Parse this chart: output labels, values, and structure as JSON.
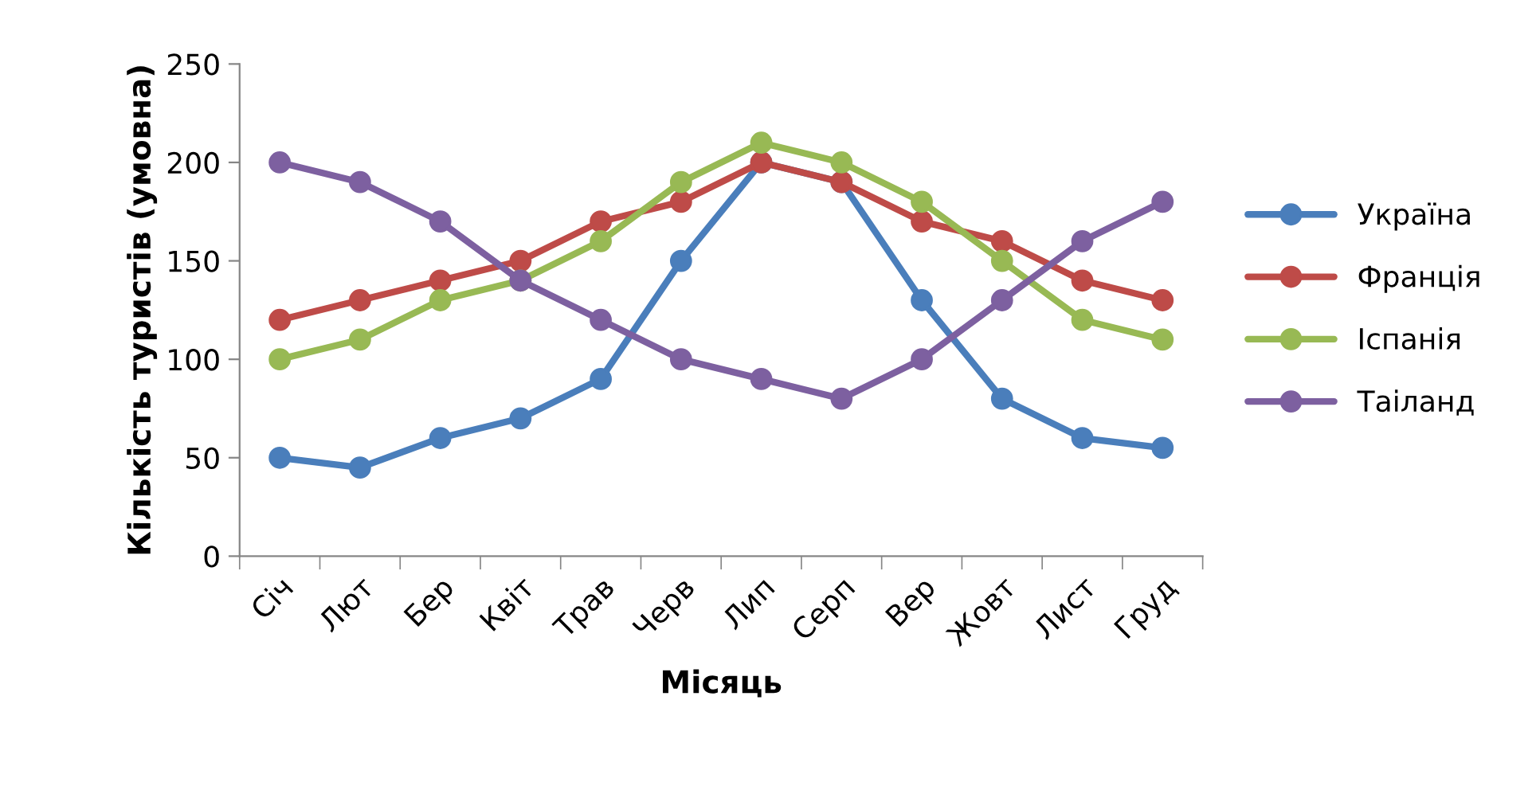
{
  "chart_data": {
    "type": "line",
    "xlabel": "Місяць",
    "ylabel": "Кількість туристів (умовна)",
    "categories": [
      "Січ",
      "Лют",
      "Бер",
      "Квіт",
      "Трав",
      "Черв",
      "Лип",
      "Серп",
      "Вер",
      "Жовт",
      "Лист",
      "Груд"
    ],
    "series": [
      {
        "name": "Україна",
        "color": "#4a7ebb",
        "values": [
          50,
          45,
          60,
          70,
          90,
          150,
          200,
          190,
          130,
          80,
          60,
          55
        ]
      },
      {
        "name": "Франція",
        "color": "#be4b48",
        "values": [
          120,
          130,
          140,
          150,
          170,
          180,
          200,
          190,
          170,
          160,
          140,
          130
        ]
      },
      {
        "name": "Іспанія",
        "color": "#98b954",
        "values": [
          100,
          110,
          130,
          140,
          160,
          190,
          210,
          200,
          180,
          150,
          120,
          110
        ]
      },
      {
        "name": "Таіланд",
        "color": "#7d60a0",
        "values": [
          200,
          190,
          170,
          140,
          120,
          100,
          90,
          80,
          100,
          130,
          160,
          180
        ]
      }
    ],
    "ylim": [
      0,
      250
    ],
    "yticks": [
      0,
      50,
      100,
      150,
      200,
      250
    ],
    "grid": false,
    "legend": "right",
    "marker": "circle",
    "line_style": "solid"
  }
}
